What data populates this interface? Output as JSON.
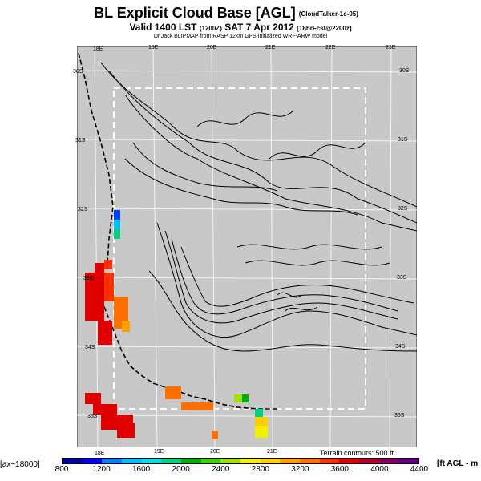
{
  "header": {
    "title": "BL Explicit Cloud Base [AGL]",
    "title_note": "(CloudTalker-1c-05)",
    "valid_prefix": "Valid 1400 LST",
    "valid_utc": "(1200Z)",
    "valid_date": "SAT 7 Apr 2012",
    "forecast_note": "[18hrFcst@2200z]",
    "source": "Dr.Jack BLIPMAP from RASP 12km GFS-initialized WRF-ARW model"
  },
  "map": {
    "land_color": "#c8c8c8",
    "contour_color": "#000000",
    "grid_color": "#ffffff",
    "lon_labels_top": [
      "18E",
      "19E",
      "20E",
      "21E",
      "22E",
      "23E"
    ],
    "lon_labels_bottom": [
      "18E",
      "19E",
      "20E",
      "21E"
    ],
    "lat_labels_left": [
      "30S",
      "31S",
      "32S",
      "33S",
      "34S",
      "35S"
    ],
    "lat_labels_right": [
      "30S",
      "31S",
      "32S",
      "33S",
      "34S",
      "35S"
    ]
  },
  "legend": {
    "terrain_note": "Terrain contours: 500 ft",
    "left_label": "[ax~18000]",
    "right_label": "[ft AGL - m",
    "ticks": [
      "800",
      "1200",
      "1600",
      "2000",
      "2400",
      "2800",
      "3200",
      "3600",
      "4000",
      "4400"
    ],
    "colors": [
      "#0000a0",
      "#0000ff",
      "#0080ff",
      "#00c0ff",
      "#00e0e0",
      "#00d080",
      "#00b000",
      "#40d000",
      "#a0e000",
      "#f0f000",
      "#ffd000",
      "#ffa000",
      "#ff7000",
      "#ff3000",
      "#e00000",
      "#b00030",
      "#800060",
      "#600080"
    ]
  }
}
